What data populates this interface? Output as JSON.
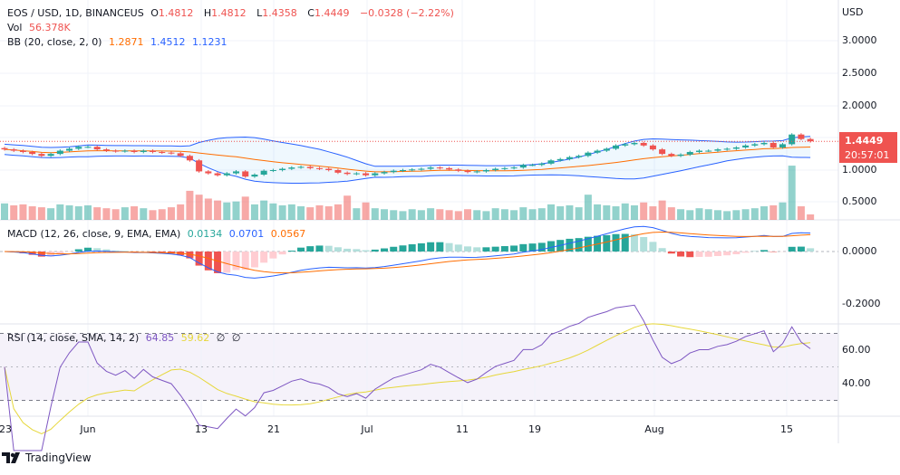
{
  "legend": {
    "symbol": "EOS / USD, 1D, BINANCEUS",
    "o_label": "O",
    "open": "1.4812",
    "h_label": "H",
    "high": "1.4812",
    "l_label": "L",
    "low": "1.4358",
    "c_label": "C",
    "close": "1.4449",
    "change": "−0.0328 (−2.22%)",
    "vol_label": "Vol",
    "vol": "56.378K",
    "bb_label": "BB (20, close, 2, 0)",
    "bb_basis": "1.2871",
    "bb_upper": "1.4512",
    "bb_lower": "1.1231",
    "macd_label": "MACD (12, 26, close, 9, EMA, EMA)",
    "macd_hist": "0.0134",
    "macd": "0.0701",
    "macd_signal": "0.0567",
    "rsi_label": "RSI (14, close, SMA, 14, 2)",
    "rsi": "64.85",
    "rsi_ma": "59.62",
    "rsi_x1": "∅",
    "rsi_x2": "∅"
  },
  "price_axis": {
    "currency": "USD",
    "labels": [
      "3.0000",
      "2.5000",
      "2.0000",
      "1.0000",
      "0.5000"
    ],
    "last_price": "1.4449",
    "countdown": "20:57:01"
  },
  "macd_axis": {
    "labels": [
      "0.0000",
      "-0.2000"
    ]
  },
  "rsi_axis": {
    "labels": [
      "60.00",
      "40.00"
    ]
  },
  "time_axis": {
    "labels": [
      "23",
      "Jun",
      "13",
      "21",
      "Jul",
      "11",
      "19",
      "Aug",
      "15"
    ]
  },
  "footer": {
    "brand": "TradingView"
  },
  "colors": {
    "up": "#26a69a",
    "down": "#ef5350",
    "bb": "#2962ff",
    "basis": "#ff6d00",
    "rsi": "#7e57c2",
    "rsi_ma": "#e6d73a"
  },
  "chart_data": {
    "type": "candlestick",
    "x_start": "May 23",
    "x_end": "Aug 18",
    "ylim": [
      0.3,
      3.2
    ],
    "close": [
      1.32,
      1.3,
      1.28,
      1.25,
      1.22,
      1.25,
      1.3,
      1.33,
      1.36,
      1.36,
      1.32,
      1.3,
      1.29,
      1.3,
      1.28,
      1.3,
      1.28,
      1.27,
      1.26,
      1.22,
      1.15,
      0.98,
      0.95,
      0.92,
      0.95,
      0.98,
      0.9,
      0.93,
      0.99,
      1.0,
      1.02,
      1.04,
      1.05,
      1.03,
      1.02,
      1.0,
      0.96,
      0.94,
      0.95,
      0.92,
      0.95,
      0.97,
      0.99,
      1.0,
      1.01,
      1.02,
      1.04,
      1.03,
      1.01,
      0.99,
      0.97,
      0.98,
      1.0,
      1.02,
      1.03,
      1.04,
      1.08,
      1.08,
      1.1,
      1.15,
      1.17,
      1.2,
      1.22,
      1.27,
      1.3,
      1.33,
      1.38,
      1.4,
      1.42,
      1.38,
      1.32,
      1.25,
      1.22,
      1.24,
      1.28,
      1.3,
      1.3,
      1.32,
      1.33,
      1.35,
      1.38,
      1.4,
      1.42,
      1.35,
      1.4,
      1.55,
      1.48,
      1.4449
    ],
    "volume_k": [
      170,
      150,
      160,
      140,
      130,
      120,
      160,
      150,
      140,
      150,
      130,
      120,
      110,
      130,
      140,
      120,
      100,
      110,
      130,
      160,
      300,
      260,
      220,
      200,
      180,
      190,
      240,
      160,
      200,
      170,
      150,
      160,
      140,
      130,
      150,
      140,
      160,
      250,
      120,
      180,
      120,
      110,
      100,
      90,
      110,
      100,
      120,
      110,
      100,
      90,
      110,
      100,
      90,
      120,
      110,
      100,
      130,
      110,
      120,
      160,
      140,
      150,
      130,
      260,
      160,
      150,
      140,
      170,
      150,
      180,
      140,
      200,
      130,
      110,
      100,
      120,
      110,
      100,
      90,
      100,
      110,
      120,
      140,
      150,
      180,
      560,
      140,
      56.378
    ]
  }
}
